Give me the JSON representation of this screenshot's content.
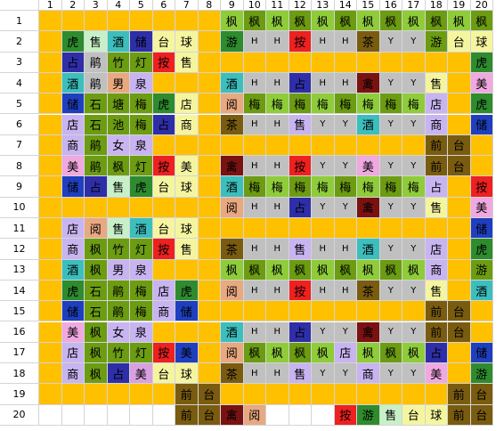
{
  "col_headers": [
    "1",
    "2",
    "3",
    "4",
    "5",
    "6",
    "7",
    "8",
    "9",
    "10",
    "11",
    "12",
    "13",
    "14",
    "15",
    "16",
    "17",
    "18",
    "19",
    "20"
  ],
  "row_headers": [
    "1",
    "2",
    "3",
    "4",
    "5",
    "6",
    "7",
    "8",
    "9",
    "10",
    "11",
    "12",
    "13",
    "14",
    "15",
    "16",
    "17",
    "18",
    "19",
    "20"
  ],
  "palette": {
    "O": "#ffc000",
    "G": "#6c9c12",
    "g": "#8fcc3a",
    "T": "#3cbebd",
    "B": "#1f3fbf",
    "b": "#2e2ea8",
    "L": "#c8b4f0",
    "P": "#d8a0e0",
    "p": "#f0a8e0",
    "R": "#ee2020",
    "S": "#c0c0c0",
    "N": "#7a5c10",
    "M": "#7a1212",
    "m": "#e8a880",
    "D": "#2e8b2e",
    "y": "#f5f5a0",
    "c": "#c8f0c8",
    "W": "#ffffff"
  },
  "grid": [
    [
      "O",
      "O",
      "O",
      "O",
      "O",
      "O",
      "O",
      "O",
      "g",
      "G",
      "g",
      "G",
      "g",
      "G",
      "g",
      "G",
      "g",
      "G",
      "g",
      "G"
    ],
    [
      "O",
      "D",
      "c",
      "T",
      "b",
      "y",
      "y",
      "O",
      "D",
      "S",
      "S",
      "R",
      "S",
      "S",
      "N",
      "S",
      "S",
      "G",
      "y",
      "y"
    ],
    [
      "O",
      "b",
      "S",
      "G",
      "G",
      "R",
      "y",
      "O",
      "O",
      "O",
      "O",
      "O",
      "O",
      "O",
      "O",
      "O",
      "O",
      "O",
      "O",
      "D"
    ],
    [
      "O",
      "T",
      "S",
      "m",
      "L",
      "O",
      "O",
      "O",
      "T",
      "S",
      "S",
      "b",
      "S",
      "S",
      "M",
      "S",
      "S",
      "y",
      "O",
      "p"
    ],
    [
      "O",
      "B",
      "G",
      "G",
      "G",
      "D",
      "y",
      "O",
      "m",
      "G",
      "g",
      "G",
      "g",
      "G",
      "g",
      "G",
      "g",
      "L",
      "O",
      "D"
    ],
    [
      "O",
      "L",
      "G",
      "G",
      "G",
      "b",
      "y",
      "O",
      "N",
      "S",
      "S",
      "L",
      "S",
      "S",
      "T",
      "S",
      "S",
      "L",
      "O",
      "B"
    ],
    [
      "O",
      "L",
      "G",
      "L",
      "L",
      "O",
      "O",
      "O",
      "O",
      "O",
      "O",
      "O",
      "O",
      "O",
      "O",
      "O",
      "O",
      "N",
      "N",
      "O"
    ],
    [
      "O",
      "p",
      "G",
      "G",
      "G",
      "R",
      "y",
      "O",
      "M",
      "S",
      "S",
      "R",
      "S",
      "S",
      "p",
      "S",
      "S",
      "N",
      "N",
      "O"
    ],
    [
      "O",
      "B",
      "b",
      "c",
      "D",
      "y",
      "y",
      "O",
      "T",
      "G",
      "g",
      "G",
      "g",
      "G",
      "g",
      "G",
      "g",
      "L",
      "O",
      "R"
    ],
    [
      "O",
      "O",
      "O",
      "O",
      "O",
      "O",
      "O",
      "O",
      "m",
      "S",
      "S",
      "b",
      "S",
      "S",
      "M",
      "S",
      "S",
      "y",
      "O",
      "p"
    ],
    [
      "O",
      "L",
      "m",
      "c",
      "T",
      "y",
      "y",
      "O",
      "O",
      "O",
      "O",
      "O",
      "O",
      "O",
      "O",
      "O",
      "O",
      "O",
      "O",
      "B"
    ],
    [
      "O",
      "L",
      "G",
      "G",
      "G",
      "R",
      "y",
      "O",
      "N",
      "S",
      "S",
      "L",
      "S",
      "S",
      "T",
      "S",
      "S",
      "L",
      "O",
      "D"
    ],
    [
      "O",
      "T",
      "G",
      "L",
      "L",
      "O",
      "O",
      "O",
      "g",
      "G",
      "g",
      "G",
      "g",
      "G",
      "g",
      "G",
      "g",
      "L",
      "O",
      "G"
    ],
    [
      "O",
      "D",
      "G",
      "G",
      "G",
      "L",
      "D",
      "O",
      "m",
      "S",
      "S",
      "R",
      "S",
      "S",
      "N",
      "S",
      "S",
      "y",
      "O",
      "T"
    ],
    [
      "O",
      "B",
      "G",
      "G",
      "G",
      "L",
      "B",
      "O",
      "O",
      "O",
      "O",
      "O",
      "O",
      "O",
      "O",
      "O",
      "O",
      "N",
      "N",
      "O"
    ],
    [
      "O",
      "p",
      "G",
      "L",
      "L",
      "O",
      "O",
      "O",
      "T",
      "S",
      "S",
      "b",
      "S",
      "S",
      "M",
      "S",
      "S",
      "N",
      "N",
      "O"
    ],
    [
      "O",
      "L",
      "G",
      "G",
      "G",
      "R",
      "B",
      "O",
      "m",
      "G",
      "g",
      "G",
      "g",
      "L",
      "g",
      "G",
      "g",
      "b",
      "O",
      "B"
    ],
    [
      "O",
      "L",
      "G",
      "b",
      "P",
      "y",
      "y",
      "O",
      "N",
      "S",
      "S",
      "L",
      "S",
      "S",
      "L",
      "S",
      "S",
      "p",
      "O",
      "D"
    ],
    [
      "O",
      "O",
      "O",
      "O",
      "O",
      "O",
      "N",
      "N",
      "O",
      "O",
      "O",
      "O",
      "O",
      "O",
      "O",
      "O",
      "O",
      "O",
      "N",
      "N"
    ],
    [
      "W",
      "W",
      "W",
      "W",
      "W",
      "W",
      "N",
      "N",
      "M",
      "m",
      "W",
      "W",
      "W",
      "R",
      "D",
      "c",
      "y",
      "y",
      "N",
      "N"
    ]
  ],
  "text": [
    [
      "",
      "",
      "",
      "",
      "",
      "",
      "",
      "",
      "枫",
      "枫",
      "枫",
      "枫",
      "枫",
      "枫",
      "枫",
      "枫",
      "枫",
      "枫",
      "枫",
      "枫"
    ],
    [
      "",
      "虎",
      "售",
      "酒",
      "储",
      "台",
      "球",
      "",
      "游",
      "H",
      "H",
      "按",
      "H",
      "H",
      "茶",
      "Y",
      "Y",
      "游",
      "台",
      "球"
    ],
    [
      "",
      "占",
      "鹃",
      "竹",
      "灯",
      "按",
      "售",
      "",
      "",
      "",
      "",
      "",
      "",
      "",
      "",
      "",
      "",
      "",
      "",
      "虎"
    ],
    [
      "",
      "酒",
      "鹃",
      "男",
      "泉",
      "",
      "",
      "",
      "酒",
      "H",
      "H",
      "占",
      "H",
      "H",
      "禽",
      "Y",
      "Y",
      "售",
      "",
      "美"
    ],
    [
      "",
      "储",
      "石",
      "塘",
      "梅",
      "虎",
      "店",
      "",
      "阅",
      "梅",
      "梅",
      "梅",
      "梅",
      "梅",
      "梅",
      "梅",
      "梅",
      "店",
      "",
      "虎"
    ],
    [
      "",
      "店",
      "石",
      "池",
      "梅",
      "占",
      "商",
      "",
      "茶",
      "H",
      "H",
      "售",
      "Y",
      "Y",
      "酒",
      "Y",
      "Y",
      "商",
      "",
      "储"
    ],
    [
      "",
      "商",
      "鹃",
      "女",
      "泉",
      "",
      "",
      "",
      "",
      "",
      "",
      "",
      "",
      "",
      "",
      "",
      "",
      "前",
      "台",
      ""
    ],
    [
      "",
      "美",
      "鹃",
      "枫",
      "灯",
      "按",
      "美",
      "",
      "禽",
      "H",
      "H",
      "按",
      "Y",
      "Y",
      "美",
      "Y",
      "Y",
      "前",
      "台",
      ""
    ],
    [
      "",
      "储",
      "占",
      "售",
      "虎",
      "台",
      "球",
      "",
      "酒",
      "梅",
      "梅",
      "梅",
      "梅",
      "梅",
      "梅",
      "梅",
      "梅",
      "占",
      "",
      "按"
    ],
    [
      "",
      "",
      "",
      "",
      "",
      "",
      "",
      "",
      "阅",
      "H",
      "H",
      "占",
      "Y",
      "Y",
      "禽",
      "Y",
      "Y",
      "售",
      "",
      "美"
    ],
    [
      "",
      "店",
      "阅",
      "售",
      "酒",
      "台",
      "球",
      "",
      "",
      "",
      "",
      "",
      "",
      "",
      "",
      "",
      "",
      "",
      "",
      "储"
    ],
    [
      "",
      "商",
      "枫",
      "竹",
      "灯",
      "按",
      "售",
      "",
      "茶",
      "H",
      "H",
      "售",
      "H",
      "H",
      "酒",
      "Y",
      "Y",
      "店",
      "",
      "虎"
    ],
    [
      "",
      "酒",
      "枫",
      "男",
      "泉",
      "",
      "",
      "",
      "枫",
      "枫",
      "枫",
      "枫",
      "枫",
      "枫",
      "枫",
      "枫",
      "枫",
      "商",
      "",
      "游"
    ],
    [
      "",
      "虎",
      "石",
      "鹃",
      "梅",
      "店",
      "虎",
      "",
      "阅",
      "H",
      "H",
      "按",
      "H",
      "H",
      "茶",
      "Y",
      "Y",
      "售",
      "",
      "酒"
    ],
    [
      "",
      "储",
      "石",
      "鹃",
      "梅",
      "商",
      "储",
      "",
      "",
      "",
      "",
      "",
      "",
      "",
      "",
      "",
      "",
      "前",
      "台",
      ""
    ],
    [
      "",
      "美",
      "枫",
      "女",
      "泉",
      "",
      "",
      "",
      "酒",
      "H",
      "H",
      "占",
      "Y",
      "Y",
      "禽",
      "Y",
      "Y",
      "前",
      "台",
      ""
    ],
    [
      "",
      "店",
      "枫",
      "竹",
      "灯",
      "按",
      "美",
      "",
      "阅",
      "枫",
      "枫",
      "枫",
      "枫",
      "店",
      "枫",
      "枫",
      "枫",
      "占",
      "",
      "储"
    ],
    [
      "",
      "商",
      "枫",
      "占",
      "美",
      "台",
      "球",
      "",
      "茶",
      "H",
      "H",
      "售",
      "Y",
      "Y",
      "商",
      "Y",
      "Y",
      "美",
      "",
      "游"
    ],
    [
      "",
      "",
      "",
      "",
      "",
      "",
      "前",
      "台",
      "",
      "",
      "",
      "",
      "",
      "",
      "",
      "",
      "",
      "",
      "前",
      "台"
    ],
    [
      "",
      "",
      "",
      "",
      "",
      "",
      "前",
      "台",
      "禽",
      "阅",
      "",
      "",
      "",
      "按",
      "游",
      "售",
      "台",
      "球",
      "前",
      "台"
    ]
  ]
}
